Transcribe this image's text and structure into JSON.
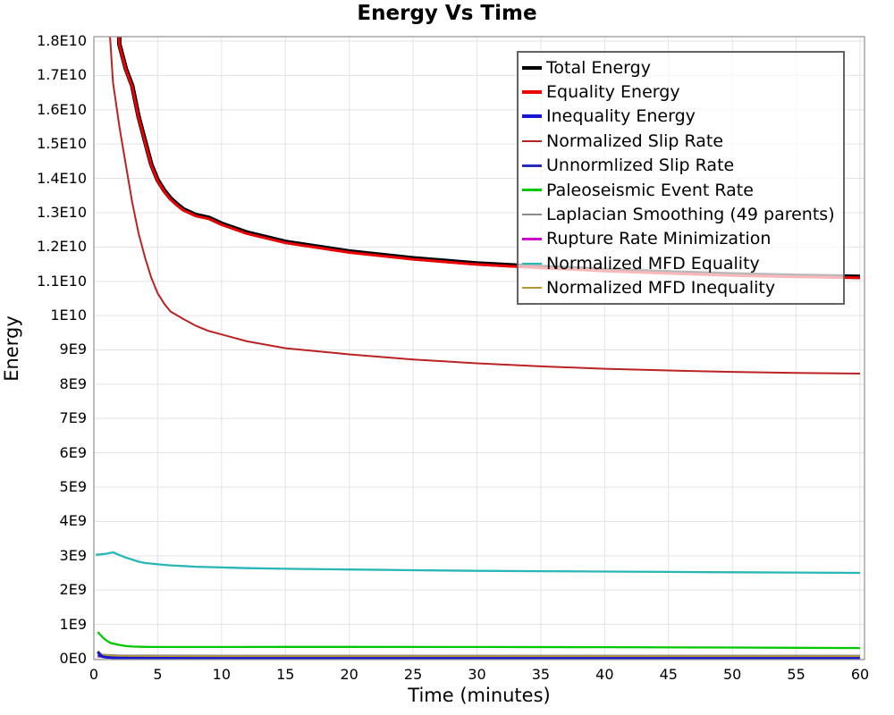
{
  "page": {
    "title": "Energy Vs Time"
  },
  "chart_data": {
    "type": "line",
    "title": "Energy Vs Time",
    "xlabel": "Time (minutes)",
    "ylabel": "Energy",
    "xlim": [
      0,
      60.35
    ],
    "ylim_e9": [
      0,
      18.13
    ],
    "grid": true,
    "legend_position": "top-right-inside",
    "x_ticks": [
      0,
      5,
      10,
      15,
      20,
      25,
      30,
      35,
      40,
      45,
      50,
      55,
      60
    ],
    "y_ticks": [
      {
        "value_e9": 0,
        "label": "0E0"
      },
      {
        "value_e9": 1,
        "label": "1E9"
      },
      {
        "value_e9": 2,
        "label": "2E9"
      },
      {
        "value_e9": 3,
        "label": "3E9"
      },
      {
        "value_e9": 4,
        "label": "4E9"
      },
      {
        "value_e9": 5,
        "label": "5E9"
      },
      {
        "value_e9": 6,
        "label": "6E9"
      },
      {
        "value_e9": 7,
        "label": "7E9"
      },
      {
        "value_e9": 8,
        "label": "8E9"
      },
      {
        "value_e9": 9,
        "label": "9E9"
      },
      {
        "value_e9": 10,
        "label": "1E10"
      },
      {
        "value_e9": 11,
        "label": "1.1E10"
      },
      {
        "value_e9": 12,
        "label": "1.2E10"
      },
      {
        "value_e9": 13,
        "label": "1.3E10"
      },
      {
        "value_e9": 14,
        "label": "1.4E10"
      },
      {
        "value_e9": 15,
        "label": "1.5E10"
      },
      {
        "value_e9": 16,
        "label": "1.6E10"
      },
      {
        "value_e9": 17,
        "label": "1.7E10"
      },
      {
        "value_e9": 18,
        "label": "1.8E10"
      }
    ],
    "series": [
      {
        "name": "Total Energy",
        "color": "#000000",
        "line_width": 5,
        "swatch": "thick",
        "x": [
          0.5,
          1,
          1.5,
          2,
          2.5,
          3,
          3.5,
          4,
          4.5,
          5,
          5.5,
          6,
          6.5,
          7,
          8,
          9,
          10,
          12,
          15,
          20,
          25,
          30,
          35,
          40,
          45,
          50,
          55,
          60
        ],
        "y_e9": [
          60,
          35,
          24,
          17.9,
          17.2,
          16.7,
          15.8,
          15.1,
          14.4,
          13.95,
          13.65,
          13.42,
          13.25,
          13.1,
          12.93,
          12.85,
          12.68,
          12.42,
          12.15,
          11.87,
          11.67,
          11.52,
          11.42,
          11.33,
          11.26,
          11.2,
          11.16,
          11.13
        ]
      },
      {
        "name": "Equality Energy",
        "color": "#ee0000",
        "line_width": 3,
        "swatch": "thick",
        "x": [
          0.5,
          1,
          1.5,
          2,
          2.5,
          3,
          3.5,
          4,
          4.5,
          5,
          5.5,
          6,
          6.5,
          7,
          8,
          9,
          10,
          12,
          15,
          20,
          25,
          30,
          35,
          40,
          45,
          50,
          55,
          60
        ],
        "y_e9": [
          60,
          35,
          24,
          17.87,
          17.17,
          16.67,
          15.77,
          15.07,
          14.37,
          13.92,
          13.62,
          13.39,
          13.22,
          13.07,
          12.9,
          12.82,
          12.65,
          12.39,
          12.12,
          11.84,
          11.64,
          11.49,
          11.39,
          11.3,
          11.23,
          11.17,
          11.13,
          11.1
        ]
      },
      {
        "name": "Inequality Energy",
        "color": "#1616d0",
        "line_width": 3,
        "swatch": "thick",
        "x": [
          0.3,
          0.5,
          0.7,
          1,
          1.5,
          2,
          3,
          5,
          10,
          20,
          30,
          40,
          50,
          60
        ],
        "y_e9": [
          0.2,
          0.11,
          0.06,
          0.04,
          0.025,
          0.02,
          0.015,
          0.012,
          0.01,
          0.01,
          0.01,
          0.01,
          0.01,
          0.01
        ]
      },
      {
        "name": "Normalized Slip Rate",
        "color": "#bb2222",
        "line_width": 2,
        "swatch": "thin",
        "x": [
          0.5,
          0.75,
          1,
          1.25,
          1.5,
          2,
          2.5,
          3,
          3.5,
          4,
          4.5,
          5,
          5.5,
          6,
          7,
          8,
          9,
          10,
          12,
          15,
          20,
          25,
          30,
          35,
          40,
          45,
          50,
          55,
          60
        ],
        "y_e9": [
          40,
          28,
          21.5,
          18.2,
          16.8,
          15.5,
          14.4,
          13.3,
          12.4,
          11.7,
          11.1,
          10.65,
          10.35,
          10.12,
          9.9,
          9.7,
          9.55,
          9.45,
          9.25,
          9.05,
          8.87,
          8.72,
          8.61,
          8.52,
          8.45,
          8.4,
          8.36,
          8.33,
          8.31
        ]
      },
      {
        "name": "Unnormlized Slip Rate",
        "color": "#2a2abb",
        "line_width": 1.8,
        "swatch": "thin",
        "x": [
          0.3,
          0.6,
          1,
          2,
          5,
          10,
          20,
          30,
          40,
          50,
          60
        ],
        "y_e9": [
          0.1,
          0.05,
          0.03,
          0.025,
          0.02,
          0.02,
          0.02,
          0.02,
          0.02,
          0.02,
          0.02
        ]
      },
      {
        "name": "Paleoseismic Event Rate",
        "color": "#00c800",
        "line_width": 2.3,
        "swatch": "thin",
        "x": [
          0.3,
          0.5,
          0.75,
          1,
          1.25,
          1.5,
          2,
          2.5,
          3,
          4,
          5,
          7,
          10,
          15,
          20,
          30,
          40,
          50,
          60
        ],
        "y_e9": [
          0.78,
          0.7,
          0.6,
          0.53,
          0.47,
          0.44,
          0.4,
          0.37,
          0.355,
          0.345,
          0.34,
          0.34,
          0.34,
          0.345,
          0.345,
          0.34,
          0.335,
          0.325,
          0.31
        ]
      },
      {
        "name": "Laplacian Smoothing (49 parents)",
        "color": "#8c8c8c",
        "line_width": 2,
        "swatch": "thin",
        "x": [
          0.3,
          0.6,
          1,
          2,
          5,
          10,
          20,
          30,
          40,
          50,
          60
        ],
        "y_e9": [
          0.15,
          0.12,
          0.11,
          0.1,
          0.095,
          0.09,
          0.09,
          0.09,
          0.09,
          0.09,
          0.09
        ]
      },
      {
        "name": "Rupture Rate Minimization",
        "color": "#cc00cc",
        "line_width": 1.8,
        "swatch": "thin",
        "x": [
          0.3,
          1,
          2,
          5,
          10,
          20,
          30,
          40,
          50,
          60
        ],
        "y_e9": [
          0.06,
          0.05,
          0.045,
          0.042,
          0.04,
          0.04,
          0.04,
          0.04,
          0.04,
          0.04
        ]
      },
      {
        "name": "Normalized MFD Equality",
        "color": "#29b6b6",
        "line_width": 2.3,
        "swatch": "thin",
        "x": [
          0.15,
          0.5,
          1,
          1.5,
          2,
          2.5,
          3,
          3.5,
          4,
          5,
          6,
          7,
          8,
          10,
          12,
          15,
          20,
          25,
          30,
          35,
          40,
          45,
          50,
          55,
          60
        ],
        "y_e9": [
          3.03,
          3.04,
          3.06,
          3.1,
          3.02,
          2.95,
          2.89,
          2.83,
          2.79,
          2.75,
          2.72,
          2.7,
          2.68,
          2.66,
          2.64,
          2.62,
          2.6,
          2.58,
          2.56,
          2.55,
          2.54,
          2.53,
          2.52,
          2.51,
          2.5
        ]
      },
      {
        "name": "Normalized MFD Inequality",
        "color": "#b8962e",
        "line_width": 2.5,
        "swatch": "thin",
        "x": [
          0.3,
          0.6,
          1,
          2,
          5,
          10,
          20,
          30,
          40,
          50,
          60
        ],
        "y_e9": [
          0.22,
          0.12,
          0.08,
          0.065,
          0.06,
          0.058,
          0.057,
          0.057,
          0.057,
          0.057,
          0.057
        ]
      }
    ],
    "draw_order": [
      "Laplacian Smoothing (49 parents)",
      "Rupture Rate Minimization",
      "Unnormlized Slip Rate",
      "Normalized MFD Inequality",
      "Inequality Energy",
      "Paleoseismic Event Rate",
      "Normalized MFD Equality",
      "Normalized Slip Rate",
      "Total Energy",
      "Equality Energy"
    ],
    "style": {
      "grid_color": "#e3e3e3",
      "plot_border_color": "#999999",
      "legend_border_color": "#636363",
      "legend_background": "rgba(255,255,255,0.72)"
    }
  }
}
